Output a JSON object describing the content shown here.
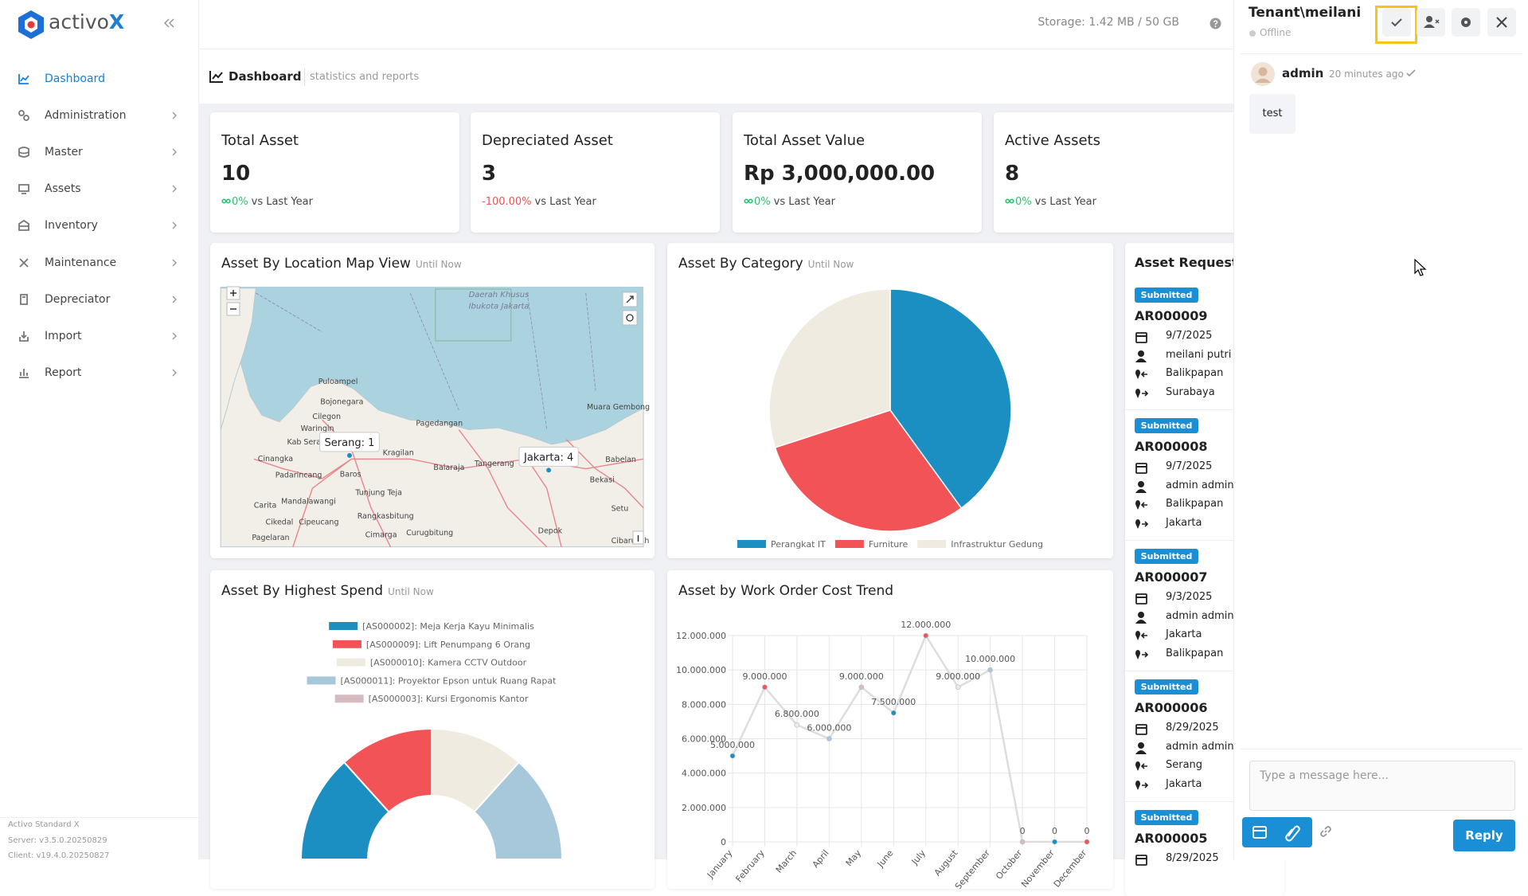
{
  "sidebar": {
    "brand": [
      "activo",
      "X"
    ],
    "menu": [
      "Dashboard",
      "Administration",
      "Master",
      "Assets",
      "Inventory",
      "Maintenance",
      "Depreciator",
      "Import",
      "Report"
    ],
    "footer": [
      "Activo Standard X",
      "Server: v3.5.0.20250829",
      "Client: v19.4.0.20250827"
    ]
  },
  "header": {
    "storage": "Storage: 1.42 MB / 50 GB",
    "title": "Dashboard",
    "subtitle": "statistics and reports"
  },
  "stats": [
    {
      "label": "Total Asset",
      "value": "10",
      "change": "0%",
      "change_color": "#28c76f",
      "note": "vs Last Year"
    },
    {
      "label": "Depreciated Asset",
      "value": "3",
      "change": "-100.00%",
      "change_color": "#ea5455",
      "note": "vs Last Year"
    },
    {
      "label": "Total Asset Value",
      "value": "Rp 3,000,000.00",
      "change": "0%",
      "change_color": "#28c76f",
      "note": "vs Last Year"
    },
    {
      "label": "Active Assets",
      "value": "8",
      "change": "0%",
      "change_color": "#28c76f",
      "note": "vs Last Year"
    }
  ],
  "map": {
    "title": "Asset By Location Map View",
    "subtitle": "Until Now",
    "markers": {
      "labels": [
        "Serang: 1",
        "Jakarta: 4"
      ],
      "values": [
        1,
        4
      ]
    },
    "places": [
      "Daerah Khusus",
      "Ibukota Jakarta",
      "Puloampel",
      "Bojonegara",
      "Cilegon",
      "Waringin",
      "Kab Serang",
      "Kragilan",
      "Pagedangan",
      "Tangerang",
      "Bekasi",
      "Babelan",
      "Balaraja",
      "Cinangka",
      "Padarincang",
      "Baros",
      "Tunjung Teja",
      "Mandalawangi",
      "Carita",
      "Rangkasbitung",
      "Cikedal",
      "Cipeucang",
      "Pagelaran",
      "Cimarga",
      "Curugbitung",
      "Depok",
      "Muara Gembong",
      "Setu",
      "Cibarusah"
    ]
  },
  "chart_data": [
    {
      "type": "pie",
      "title": "Asset By Category",
      "subtitle": "Until Now",
      "categories": [
        "Perangkat IT",
        "Furniture",
        "Infrastruktur Gedung"
      ],
      "values": [
        4,
        3,
        3
      ],
      "colors": [
        "#1b8fc2",
        "#f15356",
        "#efebe1"
      ],
      "legend": "bottom"
    },
    {
      "type": "half-doughnut",
      "title": "Asset By Highest Spend",
      "subtitle": "Until Now",
      "categories": [
        "[AS000002]: Meja Kerja Kayu Minimalis",
        "[AS000009]: Lift Penumpang 6 Orang",
        "[AS000010]: Kamera CCTV Outdoor",
        "[AS000011]: Proyektor Epson untuk Ruang Rapat",
        "[AS000003]: Kursi Ergonomis Kantor"
      ],
      "values": [
        8000000,
        7000000,
        7000000,
        8000000,
        0
      ],
      "colors": [
        "#1b8fc2",
        "#f15356",
        "#efebe1",
        "#a7c8da",
        "#d6bcc0"
      ],
      "legend": "top"
    },
    {
      "type": "line",
      "title": "Asset by Work Order Cost Trend",
      "categories": [
        "January",
        "February",
        "March",
        "April",
        "May",
        "June",
        "July",
        "August",
        "September",
        "October",
        "November",
        "December"
      ],
      "values": [
        5000000,
        9000000,
        6800000,
        6000000,
        9000000,
        7500000,
        12000000,
        9000000,
        10000000,
        0,
        0,
        0
      ],
      "value_labels": [
        "5.000.000",
        "9.000.000",
        "6.800.000",
        "6.000.000",
        "9.000.000",
        "7.500.000",
        "12.000.000",
        "9.000.000",
        "10.000.000",
        "0",
        "0",
        "0"
      ],
      "color": "#dddddd",
      "point_colors": [
        "#1b8fc2",
        "#f15356",
        "#efebe1",
        "#a7c8da",
        "#d6bcc0",
        "#1b8fc2",
        "#f15356",
        "#efebe1",
        "#a7c8da",
        "#d6bcc0",
        "#1b8fc2",
        "#f15356"
      ],
      "ylim": [
        0,
        12000000
      ],
      "yticks": [
        {
          "value": 0,
          "label": "0"
        },
        {
          "value": 2000000,
          "label": "2.000.000"
        },
        {
          "value": 4000000,
          "label": "4.000.000"
        },
        {
          "value": 6000000,
          "label": "6.000.000"
        },
        {
          "value": 8000000,
          "label": "8.000.000"
        },
        {
          "value": 10000000,
          "label": "10.000.000"
        },
        {
          "value": 12000000,
          "label": "12.000.000"
        }
      ],
      "grid": true
    }
  ],
  "requests": {
    "title": "Asset Requests",
    "items": [
      {
        "status": "Submitted",
        "id": "AR000009",
        "date": "9/7/2025",
        "user": "meilani putri",
        "from": "Balikpapan",
        "to": "Surabaya"
      },
      {
        "status": "Submitted",
        "id": "AR000008",
        "date": "9/7/2025",
        "user": "admin admin",
        "from": "Balikpapan",
        "to": "Jakarta"
      },
      {
        "status": "Submitted",
        "id": "AR000007",
        "date": "9/3/2025",
        "user": "admin admin",
        "from": "Jakarta",
        "to": "Balikpapan"
      },
      {
        "status": "Submitted",
        "id": "AR000006",
        "date": "8/29/2025",
        "user": "admin admin",
        "from": "Serang",
        "to": "Jakarta"
      },
      {
        "status": "Submitted",
        "id": "AR000005",
        "date": "8/29/2025"
      }
    ]
  },
  "chat": {
    "tenant": "Tenant\\meilani",
    "status": "Offline",
    "messages": [
      {
        "sender": "admin",
        "time": "20 minutes ago",
        "text": "test"
      }
    ],
    "placeholder": "Type a message here...",
    "reply": "Reply"
  }
}
